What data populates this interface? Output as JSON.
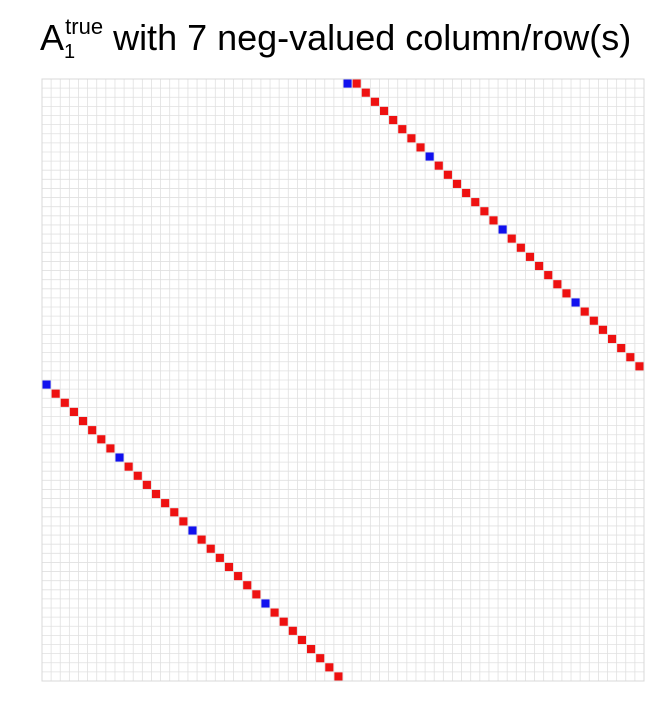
{
  "chart_data": {
    "type": "heatmap",
    "title": {
      "base": "A",
      "subscript": "1",
      "superscript": "true",
      "rest": " with 7 neg-valued column/row(s)"
    },
    "matrix_size": 66,
    "xlabel": "",
    "ylabel": "",
    "legend": "none",
    "grid": true,
    "colors": {
      "positive": "#ee1111",
      "negative": "#1111ee",
      "zero": "#ffffff",
      "grid": "#e0e0e0"
    },
    "positive_cells": [
      [
        0,
        34
      ],
      [
        1,
        35
      ],
      [
        2,
        36
      ],
      [
        3,
        37
      ],
      [
        4,
        38
      ],
      [
        5,
        39
      ],
      [
        6,
        40
      ],
      [
        7,
        41
      ],
      [
        9,
        43
      ],
      [
        10,
        44
      ],
      [
        11,
        45
      ],
      [
        12,
        46
      ],
      [
        13,
        47
      ],
      [
        14,
        48
      ],
      [
        15,
        49
      ],
      [
        17,
        51
      ],
      [
        18,
        52
      ],
      [
        19,
        53
      ],
      [
        20,
        54
      ],
      [
        21,
        55
      ],
      [
        22,
        56
      ],
      [
        23,
        57
      ],
      [
        25,
        59
      ],
      [
        26,
        60
      ],
      [
        27,
        61
      ],
      [
        28,
        62
      ],
      [
        29,
        63
      ],
      [
        30,
        64
      ],
      [
        31,
        65
      ],
      [
        34,
        1
      ],
      [
        35,
        2
      ],
      [
        36,
        3
      ],
      [
        37,
        4
      ],
      [
        38,
        5
      ],
      [
        39,
        6
      ],
      [
        40,
        7
      ],
      [
        42,
        9
      ],
      [
        43,
        10
      ],
      [
        44,
        11
      ],
      [
        45,
        12
      ],
      [
        46,
        13
      ],
      [
        47,
        14
      ],
      [
        48,
        15
      ],
      [
        50,
        17
      ],
      [
        51,
        18
      ],
      [
        52,
        19
      ],
      [
        53,
        20
      ],
      [
        54,
        21
      ],
      [
        55,
        22
      ],
      [
        56,
        23
      ],
      [
        58,
        25
      ],
      [
        59,
        26
      ],
      [
        60,
        27
      ],
      [
        61,
        28
      ],
      [
        62,
        29
      ],
      [
        63,
        30
      ],
      [
        64,
        31
      ],
      [
        65,
        32
      ]
    ],
    "negative_cells": [
      [
        0,
        33
      ],
      [
        8,
        42
      ],
      [
        16,
        50
      ],
      [
        24,
        58
      ],
      [
        33,
        0
      ],
      [
        41,
        8
      ],
      [
        49,
        16
      ],
      [
        57,
        24
      ]
    ]
  }
}
